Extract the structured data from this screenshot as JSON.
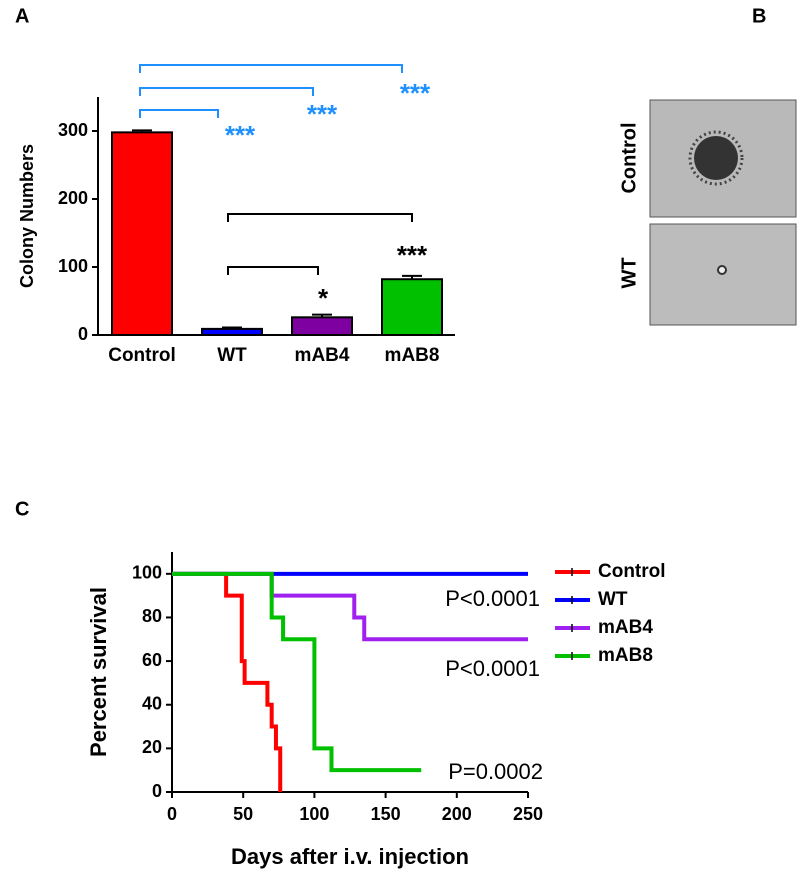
{
  "chart_data": [
    {
      "type": "bar",
      "panel_label": "A",
      "ylabel": "Colony Numbers",
      "categories": [
        "Control",
        "WT",
        "mAB4",
        "mAB8"
      ],
      "values": [
        298,
        9,
        26,
        82
      ],
      "errors": [
        3,
        2,
        4,
        5
      ],
      "colors": [
        "#ff0000",
        "#0000ff",
        "#7f00a0",
        "#00c000"
      ],
      "ylim": [
        0,
        350
      ],
      "yticks": [
        0,
        100,
        200,
        300
      ],
      "annotations": [
        {
          "text": "***",
          "color": "#1e90ff"
        },
        {
          "text": "***",
          "color": "#1e90ff"
        },
        {
          "text": "***",
          "color": "#1e90ff"
        },
        {
          "text": "*",
          "color": "#000000"
        },
        {
          "text": "***",
          "color": "#000000"
        }
      ]
    },
    {
      "type": "step",
      "panel_label": "C",
      "xlabel": "Days after i.v. injection",
      "ylabel": "Percent survival",
      "xlim": [
        0,
        250
      ],
      "xticks": [
        0,
        50,
        100,
        150,
        200,
        250
      ],
      "ylim": [
        0,
        110
      ],
      "yticks": [
        0,
        20,
        40,
        60,
        80,
        100
      ],
      "legend": "right",
      "series": [
        {
          "name": "Control",
          "color": "#ff0000",
          "x": [
            0,
            38,
            38,
            49,
            49,
            51,
            51,
            67,
            67,
            70,
            70,
            73,
            73,
            76,
            76
          ],
          "values": [
            100,
            100,
            90,
            90,
            60,
            60,
            50,
            50,
            40,
            40,
            30,
            30,
            20,
            20,
            0
          ]
        },
        {
          "name": "WT",
          "color": "#0000ff",
          "x": [
            0,
            250
          ],
          "values": [
            100,
            100
          ]
        },
        {
          "name": "mAB4",
          "color": "#a020f0",
          "x": [
            0,
            70,
            70,
            128,
            128,
            135,
            135,
            250
          ],
          "values": [
            100,
            100,
            90,
            90,
            80,
            80,
            70,
            70
          ]
        },
        {
          "name": "mAB8",
          "color": "#00c000",
          "x": [
            0,
            70,
            70,
            78,
            78,
            100,
            100,
            112,
            112,
            175
          ],
          "values": [
            100,
            100,
            80,
            80,
            70,
            70,
            20,
            20,
            10,
            10
          ]
        }
      ],
      "annotations": [
        "P<0.0001",
        "P<0.0001",
        "P=0.0002"
      ]
    }
  ],
  "panel_b": {
    "label": "B",
    "rows": [
      "Control",
      "WT"
    ]
  }
}
